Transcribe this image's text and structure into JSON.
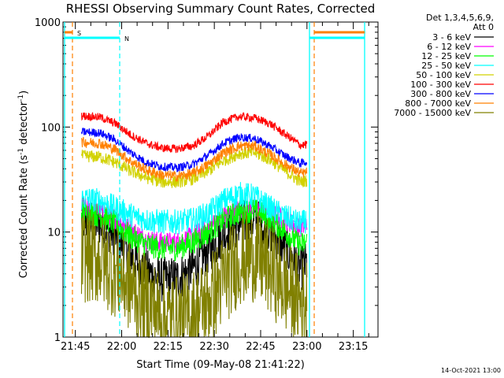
{
  "chart_data": {
    "type": "line",
    "title": "RHESSI Observing Summary Count Rates, Corrected",
    "xlabel": "Start Time (09-May-08 21:41:22)",
    "ylabel_main": "Corrected Count Rate (s",
    "ylabel_sup1": "-1",
    "ylabel_mid": " detector",
    "ylabel_sup2": "-1",
    "ylabel_end": ")",
    "yscale": "log",
    "ylim": [
      1,
      1000
    ],
    "xlim": [
      "21:41",
      "23:23"
    ],
    "x_tick_labels": [
      "21:45",
      "22:00",
      "22:15",
      "22:30",
      "22:45",
      "23:00",
      "23:15"
    ],
    "y_tick_labels": [
      "1",
      "10",
      "100",
      "1000"
    ],
    "y_tick_values": [
      1,
      10,
      100,
      1000
    ],
    "legend_header": [
      "Det 1,3,4,5,6,9,",
      "Att 0"
    ],
    "timestamp": "14-Oct-2021 13:00",
    "flag_labels": [
      "S",
      "N"
    ],
    "colors": {
      "s_flag": "#ff8000",
      "n_flag": "#00ffff"
    },
    "series": [
      {
        "name": "3 - 6 keV",
        "color": "#000000",
        "x": [
          "21:47",
          "21:53",
          "21:58",
          "22:03",
          "22:08",
          "22:13",
          "22:18",
          "22:23",
          "22:28",
          "22:33",
          "22:38",
          "22:43",
          "22:48",
          "22:53",
          "22:58",
          "23:00"
        ],
        "y": [
          13,
          12,
          9.5,
          6,
          4.2,
          3.5,
          3.6,
          4.5,
          6.5,
          9.5,
          12,
          13,
          10.5,
          7,
          4.5,
          5
        ]
      },
      {
        "name": "6 - 12 keV",
        "color": "#ff00ff",
        "x": [
          "21:47",
          "21:53",
          "21:58",
          "22:03",
          "22:08",
          "22:13",
          "22:18",
          "22:23",
          "22:28",
          "22:33",
          "22:38",
          "22:43",
          "22:48",
          "22:53",
          "22:58",
          "23:00"
        ],
        "y": [
          17,
          16,
          13.5,
          10.5,
          8.5,
          8,
          8,
          9,
          11,
          14,
          16.5,
          17,
          15,
          13,
          11,
          12
        ]
      },
      {
        "name": "12 - 25 keV",
        "color": "#00ff00",
        "x": [
          "21:47",
          "21:53",
          "21:58",
          "22:03",
          "22:08",
          "22:13",
          "22:18",
          "22:23",
          "22:28",
          "22:33",
          "22:38",
          "22:43",
          "22:48",
          "22:53",
          "22:58",
          "23:00"
        ],
        "y": [
          15.5,
          14.5,
          12,
          9,
          7.5,
          7,
          7,
          8,
          10,
          13,
          15.5,
          16,
          13.5,
          10,
          7.5,
          8
        ]
      },
      {
        "name": "25 - 50 keV",
        "color": "#00ffff",
        "x": [
          "21:47",
          "21:53",
          "21:58",
          "22:03",
          "22:08",
          "22:13",
          "22:18",
          "22:23",
          "22:28",
          "22:33",
          "22:38",
          "22:43",
          "22:48",
          "22:53",
          "22:58",
          "23:00"
        ],
        "y": [
          21,
          20,
          17,
          14.5,
          13,
          12.5,
          12.5,
          13,
          15,
          20,
          23,
          22,
          17,
          14,
          12,
          13
        ]
      },
      {
        "name": "50 - 100 keV",
        "color": "#d2d200",
        "x": [
          "21:47",
          "21:53",
          "21:58",
          "22:03",
          "22:08",
          "22:13",
          "22:18",
          "22:23",
          "22:28",
          "22:33",
          "22:38",
          "22:43",
          "22:48",
          "22:53",
          "22:58",
          "23:00"
        ],
        "y": [
          53,
          52,
          46,
          38,
          33,
          30,
          30,
          32,
          38,
          48,
          56,
          57,
          49,
          38,
          30,
          31
        ]
      },
      {
        "name": "100 - 300 keV",
        "color": "#ff0000",
        "x": [
          "21:47",
          "21:53",
          "21:58",
          "22:03",
          "22:08",
          "22:13",
          "22:18",
          "22:23",
          "22:28",
          "22:33",
          "22:38",
          "22:43",
          "22:48",
          "22:53",
          "22:58",
          "23:00"
        ],
        "y": [
          128,
          124,
          108,
          84,
          70,
          63,
          62,
          66,
          82,
          112,
          126,
          122,
          108,
          85,
          67,
          68
        ]
      },
      {
        "name": "300 - 800 keV",
        "color": "#0000ff",
        "x": [
          "21:47",
          "21:53",
          "21:58",
          "22:03",
          "22:08",
          "22:13",
          "22:18",
          "22:23",
          "22:28",
          "22:33",
          "22:38",
          "22:43",
          "22:48",
          "22:53",
          "22:58",
          "23:00"
        ],
        "y": [
          90,
          88,
          75,
          57,
          46,
          42,
          41,
          44,
          54,
          70,
          80,
          78,
          66,
          53,
          45,
          47
        ]
      },
      {
        "name": "800 - 7000 keV",
        "color": "#ff8000",
        "x": [
          "21:47",
          "21:53",
          "21:58",
          "22:03",
          "22:08",
          "22:13",
          "22:18",
          "22:23",
          "22:28",
          "22:33",
          "22:38",
          "22:43",
          "22:48",
          "22:53",
          "22:58",
          "23:00"
        ],
        "y": [
          72,
          70,
          61,
          47,
          39,
          35,
          34,
          36,
          44,
          57,
          66,
          66,
          55,
          44,
          36,
          37
        ]
      },
      {
        "name": "7000 - 15000 keV",
        "color": "#808000",
        "x": [
          "21:47",
          "21:53",
          "21:58",
          "22:03",
          "22:08",
          "22:13",
          "22:18",
          "22:23",
          "22:28",
          "22:33",
          "22:38",
          "22:43",
          "22:48",
          "22:53",
          "22:58",
          "23:00"
        ],
        "y": [
          6,
          5.5,
          4.2,
          3,
          2.2,
          1.6,
          1.4,
          1.6,
          2.2,
          3.5,
          5.5,
          6,
          4.5,
          3,
          2.2,
          2.2
        ]
      }
    ]
  }
}
